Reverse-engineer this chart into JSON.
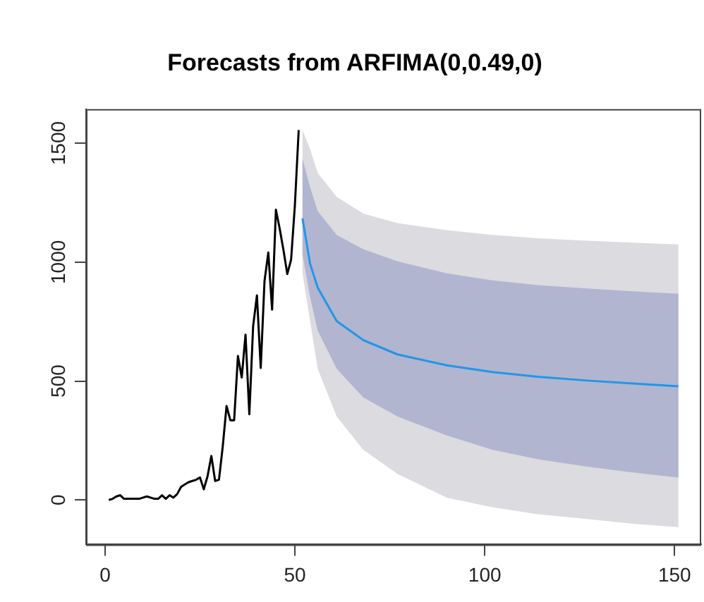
{
  "chart_data": {
    "type": "line",
    "title": "Forecasts from ARFIMA(0,0.49,0)",
    "xlim": [
      -5,
      157
    ],
    "xticks": [
      0,
      50,
      100,
      150
    ],
    "ylim": [
      -187,
      1643
    ],
    "yticks": [
      0,
      500,
      1000,
      1500
    ],
    "grid": false,
    "legend": false,
    "marker": "none",
    "line_style": "solid",
    "series": [
      {
        "color": "#000000",
        "x": [
          1,
          2,
          3,
          4,
          5,
          6,
          7,
          8,
          9,
          10,
          11,
          12,
          13,
          14,
          15,
          16,
          17,
          18,
          19,
          20,
          21,
          22,
          23,
          24,
          25,
          26,
          27,
          28,
          29,
          30,
          31,
          32,
          33,
          34,
          35,
          36,
          37,
          38,
          39,
          40,
          41,
          42,
          43,
          44,
          45,
          46,
          47,
          48,
          49,
          50,
          51
        ],
        "values": [
          0,
          5,
          15,
          20,
          5,
          5,
          5,
          5,
          5,
          10,
          15,
          10,
          5,
          5,
          20,
          5,
          20,
          10,
          25,
          55,
          65,
          75,
          80,
          85,
          95,
          45,
          100,
          185,
          80,
          85,
          225,
          395,
          335,
          335,
          605,
          515,
          695,
          360,
          730,
          860,
          555,
          920,
          1040,
          800,
          1220,
          1140,
          1050,
          950,
          1010,
          1240,
          1555
        ]
      },
      {
        "color": "#2196e8",
        "x": [
          52,
          54,
          56,
          61,
          68,
          77,
          90,
          102,
          114,
          127,
          139,
          151
        ],
        "values": [
          1184,
          993,
          893,
          752,
          672,
          612,
          566,
          538,
          518,
          502,
          490,
          478
        ],
        "lower": [
          953,
          752,
          552,
          351,
          211,
          110,
          10,
          -30,
          -60,
          -80,
          -100,
          -114
        ],
        "upper": [
          1555,
          1475,
          1375,
          1274,
          1204,
          1164,
          1134,
          1114,
          1100,
          1090,
          1082,
          1074
        ]
      },
      {
        "color": "#2196e8",
        "x": [
          52,
          54,
          56,
          61,
          68,
          77,
          90,
          102,
          114,
          127,
          139,
          151
        ],
        "values": [
          null,
          null,
          null,
          null,
          null,
          null,
          null,
          null,
          null,
          null,
          null,
          null
        ],
        "lower": [
          1033,
          853,
          712,
          552,
          431,
          351,
          271,
          211,
          171,
          140,
          116,
          94
        ],
        "upper": [
          1435,
          1314,
          1214,
          1114,
          1054,
          1003,
          953,
          923,
          903,
          889,
          877,
          867
        ]
      }
    ]
  }
}
